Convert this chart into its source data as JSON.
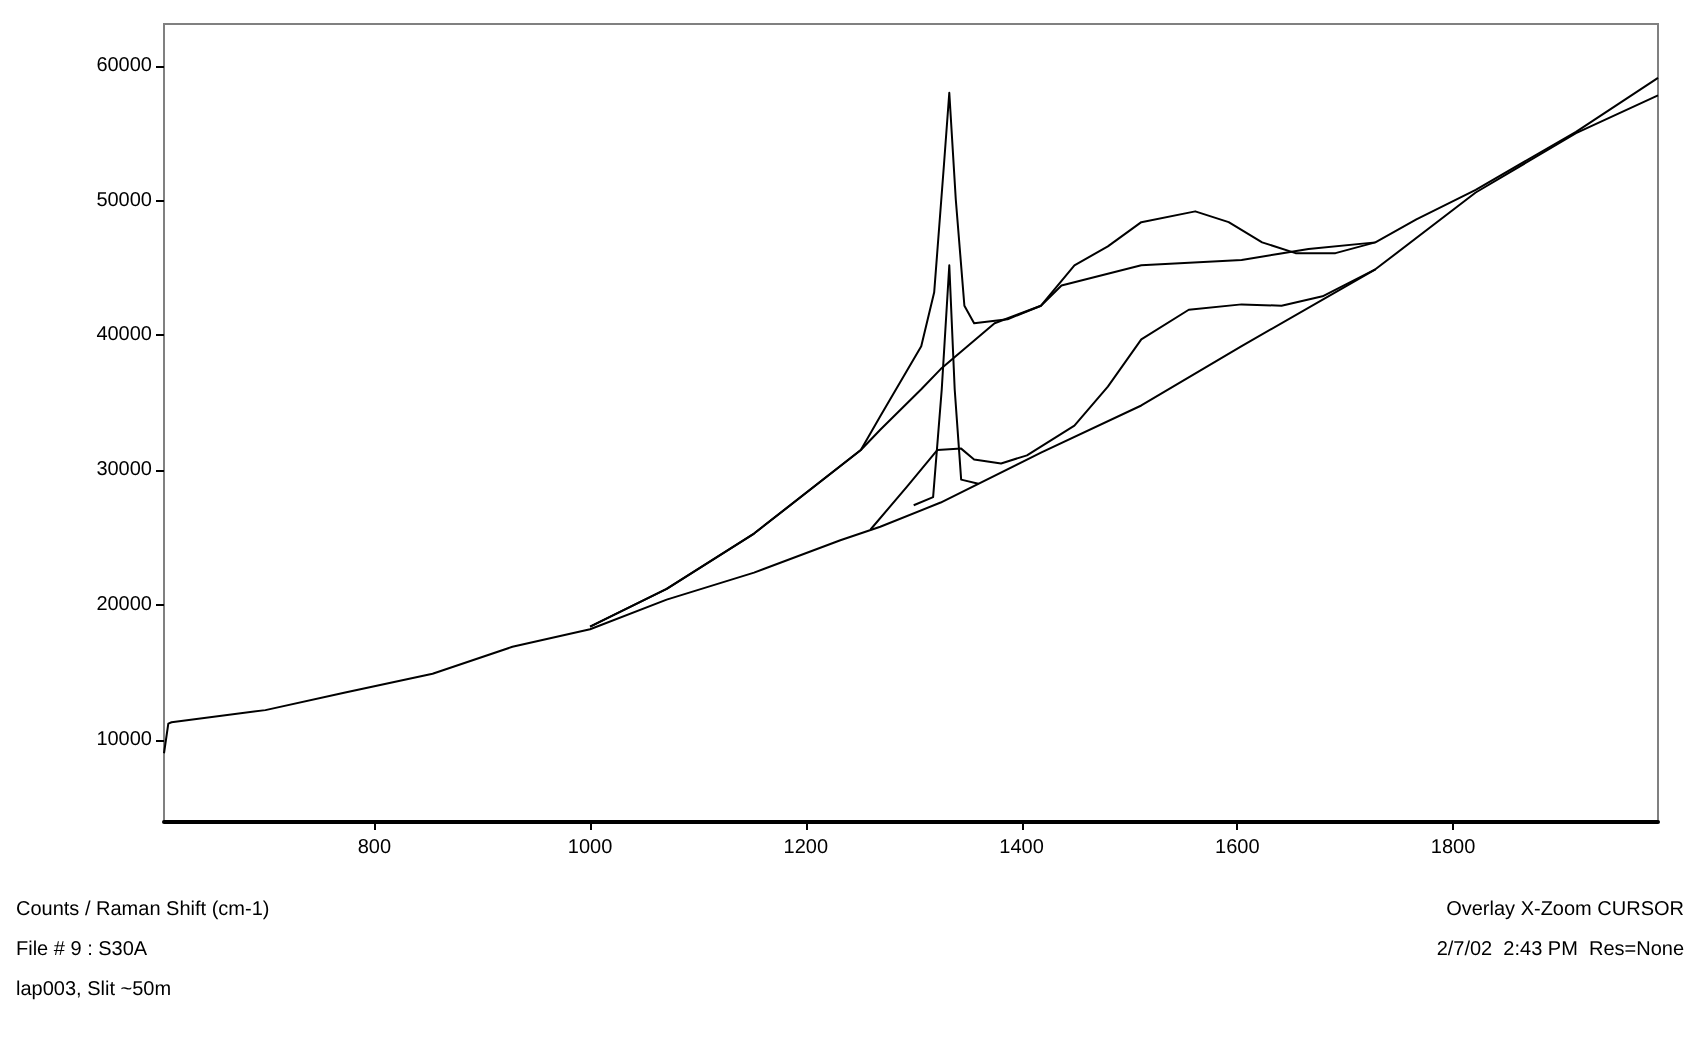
{
  "chart_data": {
    "type": "line",
    "xlim": [
      605,
      1990
    ],
    "ylim": [
      3900,
      63100
    ],
    "xticks": [
      800,
      1000,
      1200,
      1400,
      1600,
      1800
    ],
    "yticks": [
      10000,
      20000,
      30000,
      40000,
      50000,
      60000
    ],
    "grid": false,
    "marker": "none",
    "line_style": "solid",
    "annotations": [
      "Counts / Raman Shift (cm-1)",
      "File # 9 : S30A",
      "lap003, Slit ~50m",
      "Overlay X-Zoom CURSOR",
      "2/7/02  2:43 PM  Res=None"
    ],
    "series": [
      {
        "color": "#000000",
        "x": [
          605,
          609,
          612,
          699,
          773,
          854,
          928,
          1000,
          1071,
          1152,
          1232,
          1269,
          1325,
          1418,
          1511,
          1604,
          1728,
          1821,
          1914,
          1990
        ],
        "values": [
          9000,
          11200,
          11300,
          12200,
          13500,
          14900,
          16900,
          18200,
          20400,
          22400,
          24800,
          25800,
          27600,
          31300,
          34800,
          39200,
          44900,
          50600,
          55000,
          57800
        ]
      },
      {
        "color": "#000000",
        "x": [
          1000,
          1071,
          1152,
          1251,
          1269,
          1307,
          1319,
          1328,
          1333,
          1339,
          1347,
          1356,
          1387,
          1418,
          1449,
          1480,
          1511,
          1561,
          1592,
          1623,
          1654,
          1691,
          1728,
          1766,
          1821,
          1914,
          1990
        ],
        "values": [
          18400,
          21200,
          25300,
          31500,
          34000,
          39200,
          43200,
          52600,
          58000,
          50100,
          42200,
          40900,
          41200,
          42200,
          45200,
          46600,
          48400,
          49200,
          48400,
          46900,
          46100,
          46100,
          46900,
          48600,
          50800,
          55100,
          59100
        ]
      },
      {
        "color": "#000000",
        "x": [
          1000,
          1071,
          1152,
          1251,
          1269,
          1307,
          1325,
          1375,
          1418,
          1437,
          1511,
          1604,
          1666,
          1728
        ],
        "values": [
          18400,
          21200,
          25300,
          31500,
          33000,
          36000,
          37500,
          40900,
          42200,
          43700,
          45200,
          45600,
          46400,
          46900
        ]
      },
      {
        "color": "#000000",
        "x": [
          1300,
          1318,
          1326,
          1333,
          1338,
          1344,
          1360
        ],
        "values": [
          27400,
          28000,
          36000,
          45200,
          36000,
          29300,
          29000
        ]
      },
      {
        "color": "#000000",
        "x": [
          1260,
          1294,
          1322,
          1344,
          1356,
          1381,
          1405,
          1449,
          1480,
          1511,
          1555,
          1604,
          1641,
          1679,
          1728
        ],
        "values": [
          25600,
          28800,
          31500,
          31600,
          30800,
          30500,
          31100,
          33300,
          36200,
          39700,
          41900,
          42300,
          42200,
          42900,
          44900
        ]
      }
    ]
  }
}
